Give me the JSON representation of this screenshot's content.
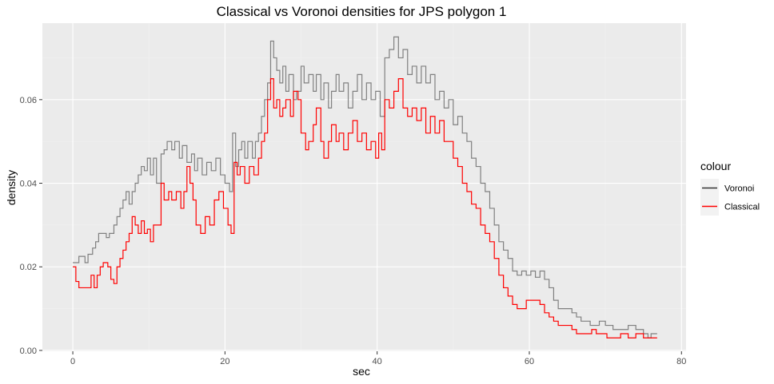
{
  "chart_data": {
    "type": "line",
    "title": "Classical vs Voronoi densities for JPS polygon 1",
    "xlabel": "sec",
    "ylabel": "density",
    "xlim": [
      -4,
      80.6
    ],
    "ylim": [
      -0.0002,
      0.0783
    ],
    "x_ticks": [
      0,
      20,
      40,
      60,
      80
    ],
    "x_tick_labels": [
      "0",
      "20",
      "40",
      "60",
      "80"
    ],
    "y_ticks": [
      0.0,
      0.02,
      0.04,
      0.06
    ],
    "y_tick_labels": [
      "0.00",
      "0.02",
      "0.04",
      "0.06"
    ],
    "grid": true,
    "legend": {
      "title": "colour",
      "position": "right",
      "entries": [
        "Voronoi",
        "Classical"
      ]
    },
    "colors": {
      "panel_background": "#ebebeb",
      "grid_major": "#ffffff",
      "Voronoi": "#808080",
      "Classical": "#ff0000"
    },
    "series": [
      {
        "name": "Voronoi",
        "step": true,
        "points": [
          [
            0,
            0.021
          ],
          [
            0.8,
            0.0225
          ],
          [
            1.6,
            0.021
          ],
          [
            2.0,
            0.023
          ],
          [
            2.6,
            0.0245
          ],
          [
            3.0,
            0.026
          ],
          [
            3.4,
            0.028
          ],
          [
            4.4,
            0.027
          ],
          [
            4.8,
            0.028
          ],
          [
            5.4,
            0.03
          ],
          [
            5.8,
            0.032
          ],
          [
            6.2,
            0.034
          ],
          [
            6.6,
            0.036
          ],
          [
            7.0,
            0.038
          ],
          [
            7.4,
            0.035
          ],
          [
            7.8,
            0.038
          ],
          [
            8.2,
            0.04
          ],
          [
            8.6,
            0.042
          ],
          [
            9.0,
            0.044
          ],
          [
            9.4,
            0.043
          ],
          [
            9.8,
            0.046
          ],
          [
            10.2,
            0.042
          ],
          [
            10.6,
            0.046
          ],
          [
            11.0,
            0.04
          ],
          [
            11.6,
            0.047
          ],
          [
            12.0,
            0.048
          ],
          [
            12.4,
            0.05
          ],
          [
            13.0,
            0.048
          ],
          [
            13.4,
            0.05
          ],
          [
            14.0,
            0.046
          ],
          [
            14.4,
            0.049
          ],
          [
            15.0,
            0.045
          ],
          [
            15.6,
            0.047
          ],
          [
            16.0,
            0.043
          ],
          [
            16.4,
            0.046
          ],
          [
            17.0,
            0.042
          ],
          [
            17.6,
            0.045
          ],
          [
            18.2,
            0.043
          ],
          [
            18.8,
            0.046
          ],
          [
            19.4,
            0.042
          ],
          [
            20.0,
            0.04
          ],
          [
            20.6,
            0.038
          ],
          [
            21.0,
            0.052
          ],
          [
            21.4,
            0.044
          ],
          [
            21.8,
            0.048
          ],
          [
            22.2,
            0.05
          ],
          [
            22.6,
            0.046
          ],
          [
            23.0,
            0.05
          ],
          [
            23.6,
            0.046
          ],
          [
            24.0,
            0.05
          ],
          [
            24.4,
            0.052
          ],
          [
            24.8,
            0.056
          ],
          [
            25.2,
            0.06
          ],
          [
            25.6,
            0.064
          ],
          [
            26.0,
            0.074
          ],
          [
            26.4,
            0.07
          ],
          [
            26.8,
            0.067
          ],
          [
            27.2,
            0.064
          ],
          [
            27.6,
            0.068
          ],
          [
            28.0,
            0.062
          ],
          [
            28.4,
            0.066
          ],
          [
            29.0,
            0.06
          ],
          [
            29.4,
            0.062
          ],
          [
            30.0,
            0.068
          ],
          [
            30.4,
            0.064
          ],
          [
            31.0,
            0.066
          ],
          [
            31.6,
            0.062
          ],
          [
            32.0,
            0.066
          ],
          [
            32.6,
            0.06
          ],
          [
            33.0,
            0.064
          ],
          [
            33.6,
            0.058
          ],
          [
            34.0,
            0.062
          ],
          [
            34.6,
            0.066
          ],
          [
            35.0,
            0.062
          ],
          [
            35.6,
            0.064
          ],
          [
            36.2,
            0.058
          ],
          [
            36.8,
            0.062
          ],
          [
            37.4,
            0.066
          ],
          [
            38.0,
            0.06
          ],
          [
            38.6,
            0.064
          ],
          [
            39.2,
            0.06
          ],
          [
            39.8,
            0.062
          ],
          [
            40.4,
            0.056
          ],
          [
            41.0,
            0.07
          ],
          [
            41.6,
            0.072
          ],
          [
            42.2,
            0.075
          ],
          [
            42.8,
            0.07
          ],
          [
            43.4,
            0.072
          ],
          [
            44.0,
            0.066
          ],
          [
            44.6,
            0.068
          ],
          [
            45.2,
            0.064
          ],
          [
            45.8,
            0.068
          ],
          [
            46.4,
            0.064
          ],
          [
            47.0,
            0.066
          ],
          [
            47.6,
            0.06
          ],
          [
            48.2,
            0.062
          ],
          [
            48.8,
            0.058
          ],
          [
            49.4,
            0.06
          ],
          [
            50.0,
            0.054
          ],
          [
            50.6,
            0.056
          ],
          [
            51.2,
            0.052
          ],
          [
            51.8,
            0.05
          ],
          [
            52.4,
            0.046
          ],
          [
            53.0,
            0.044
          ],
          [
            53.6,
            0.04
          ],
          [
            54.2,
            0.038
          ],
          [
            54.8,
            0.034
          ],
          [
            55.4,
            0.03
          ],
          [
            56.0,
            0.026
          ],
          [
            56.6,
            0.024
          ],
          [
            57.2,
            0.022
          ],
          [
            57.8,
            0.019
          ],
          [
            58.4,
            0.018
          ],
          [
            59.0,
            0.019
          ],
          [
            59.6,
            0.018
          ],
          [
            60.2,
            0.019
          ],
          [
            60.8,
            0.0175
          ],
          [
            61.4,
            0.019
          ],
          [
            62.0,
            0.017
          ],
          [
            62.6,
            0.015
          ],
          [
            63.2,
            0.012
          ],
          [
            63.8,
            0.01
          ],
          [
            64.4,
            0.01
          ],
          [
            65.0,
            0.01
          ],
          [
            65.6,
            0.009
          ],
          [
            66.2,
            0.008
          ],
          [
            66.8,
            0.007
          ],
          [
            67.4,
            0.007
          ],
          [
            68.0,
            0.006
          ],
          [
            68.6,
            0.006
          ],
          [
            69.2,
            0.007
          ],
          [
            70.0,
            0.006
          ],
          [
            71.0,
            0.005
          ],
          [
            72.0,
            0.005
          ],
          [
            73.0,
            0.006
          ],
          [
            74.0,
            0.005
          ],
          [
            75.0,
            0.004
          ],
          [
            75.6,
            0.003
          ],
          [
            76.0,
            0.004
          ],
          [
            76.8,
            0.004
          ]
        ]
      },
      {
        "name": "Classical",
        "step": true,
        "points": [
          [
            0,
            0.02
          ],
          [
            0.4,
            0.0165
          ],
          [
            0.8,
            0.015
          ],
          [
            1.6,
            0.015
          ],
          [
            2.4,
            0.018
          ],
          [
            2.8,
            0.015
          ],
          [
            3.2,
            0.018
          ],
          [
            3.6,
            0.02
          ],
          [
            4.0,
            0.021
          ],
          [
            4.6,
            0.02
          ],
          [
            5.0,
            0.017
          ],
          [
            5.4,
            0.016
          ],
          [
            5.8,
            0.02
          ],
          [
            6.2,
            0.022
          ],
          [
            6.6,
            0.024
          ],
          [
            7.0,
            0.026
          ],
          [
            7.4,
            0.028
          ],
          [
            7.8,
            0.032
          ],
          [
            8.2,
            0.03
          ],
          [
            8.6,
            0.028
          ],
          [
            9.0,
            0.031
          ],
          [
            9.4,
            0.028
          ],
          [
            9.8,
            0.029
          ],
          [
            10.2,
            0.026
          ],
          [
            10.6,
            0.03
          ],
          [
            11.0,
            0.03
          ],
          [
            11.6,
            0.04
          ],
          [
            12.0,
            0.036
          ],
          [
            12.6,
            0.038
          ],
          [
            13.0,
            0.036
          ],
          [
            13.6,
            0.038
          ],
          [
            14.2,
            0.034
          ],
          [
            14.6,
            0.038
          ],
          [
            15.0,
            0.044
          ],
          [
            15.4,
            0.04
          ],
          [
            15.8,
            0.036
          ],
          [
            16.2,
            0.03
          ],
          [
            16.8,
            0.028
          ],
          [
            17.4,
            0.032
          ],
          [
            18.0,
            0.03
          ],
          [
            18.6,
            0.036
          ],
          [
            19.2,
            0.038
          ],
          [
            19.8,
            0.034
          ],
          [
            20.4,
            0.03
          ],
          [
            20.8,
            0.028
          ],
          [
            21.2,
            0.045
          ],
          [
            21.6,
            0.042
          ],
          [
            22.0,
            0.044
          ],
          [
            22.6,
            0.04
          ],
          [
            23.2,
            0.044
          ],
          [
            23.8,
            0.042
          ],
          [
            24.4,
            0.046
          ],
          [
            24.8,
            0.05
          ],
          [
            25.2,
            0.052
          ],
          [
            25.6,
            0.06
          ],
          [
            26.0,
            0.065
          ],
          [
            26.4,
            0.058
          ],
          [
            26.8,
            0.06
          ],
          [
            27.2,
            0.056
          ],
          [
            27.6,
            0.058
          ],
          [
            28.0,
            0.06
          ],
          [
            28.6,
            0.056
          ],
          [
            29.0,
            0.062
          ],
          [
            29.6,
            0.06
          ],
          [
            30.0,
            0.052
          ],
          [
            30.6,
            0.048
          ],
          [
            31.0,
            0.05
          ],
          [
            31.6,
            0.054
          ],
          [
            32.0,
            0.058
          ],
          [
            32.6,
            0.05
          ],
          [
            33.0,
            0.046
          ],
          [
            33.6,
            0.05
          ],
          [
            34.0,
            0.054
          ],
          [
            34.6,
            0.05
          ],
          [
            35.0,
            0.052
          ],
          [
            35.6,
            0.048
          ],
          [
            36.2,
            0.052
          ],
          [
            36.8,
            0.055
          ],
          [
            37.4,
            0.05
          ],
          [
            38.0,
            0.052
          ],
          [
            38.6,
            0.048
          ],
          [
            39.2,
            0.05
          ],
          [
            39.8,
            0.046
          ],
          [
            40.2,
            0.052
          ],
          [
            40.6,
            0.048
          ],
          [
            41.0,
            0.06
          ],
          [
            41.6,
            0.058
          ],
          [
            42.2,
            0.062
          ],
          [
            42.8,
            0.065
          ],
          [
            43.4,
            0.058
          ],
          [
            44.0,
            0.056
          ],
          [
            44.6,
            0.058
          ],
          [
            45.2,
            0.055
          ],
          [
            45.8,
            0.058
          ],
          [
            46.4,
            0.052
          ],
          [
            47.0,
            0.056
          ],
          [
            47.6,
            0.052
          ],
          [
            48.2,
            0.055
          ],
          [
            48.8,
            0.05
          ],
          [
            49.4,
            0.05
          ],
          [
            50.0,
            0.046
          ],
          [
            50.6,
            0.044
          ],
          [
            51.2,
            0.04
          ],
          [
            51.8,
            0.038
          ],
          [
            52.4,
            0.035
          ],
          [
            53.0,
            0.034
          ],
          [
            53.6,
            0.03
          ],
          [
            54.2,
            0.028
          ],
          [
            54.8,
            0.026
          ],
          [
            55.4,
            0.022
          ],
          [
            56.0,
            0.018
          ],
          [
            56.6,
            0.015
          ],
          [
            57.2,
            0.013
          ],
          [
            57.8,
            0.011
          ],
          [
            58.4,
            0.01
          ],
          [
            59.0,
            0.01
          ],
          [
            59.6,
            0.012
          ],
          [
            60.2,
            0.012
          ],
          [
            60.8,
            0.012
          ],
          [
            61.4,
            0.011
          ],
          [
            62.0,
            0.009
          ],
          [
            62.6,
            0.008
          ],
          [
            63.2,
            0.007
          ],
          [
            63.8,
            0.006
          ],
          [
            64.4,
            0.006
          ],
          [
            65.0,
            0.006
          ],
          [
            65.6,
            0.005
          ],
          [
            66.2,
            0.004
          ],
          [
            66.8,
            0.004
          ],
          [
            67.6,
            0.004
          ],
          [
            68.2,
            0.005
          ],
          [
            68.8,
            0.004
          ],
          [
            69.6,
            0.004
          ],
          [
            70.2,
            0.003
          ],
          [
            71.2,
            0.003
          ],
          [
            72.0,
            0.004
          ],
          [
            73.0,
            0.003
          ],
          [
            74.0,
            0.004
          ],
          [
            75.0,
            0.003
          ],
          [
            76.0,
            0.003
          ],
          [
            76.8,
            0.003
          ]
        ]
      }
    ]
  }
}
